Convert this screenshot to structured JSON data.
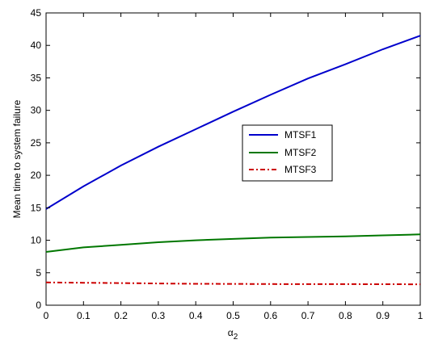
{
  "chart_data": {
    "type": "line",
    "xlabel_base": "α",
    "xlabel_sub": "2",
    "ylabel": "Mean time to system failure",
    "xlim": [
      0,
      1
    ],
    "ylim": [
      0,
      45
    ],
    "xticks": [
      0,
      0.1,
      0.2,
      0.3,
      0.4,
      0.5,
      0.6,
      0.7,
      0.8,
      0.9,
      1
    ],
    "xtick_labels": [
      "0",
      "0.1",
      "0.2",
      "0.3",
      "0.4",
      "0.5",
      "0.6",
      "0.7",
      "0.8",
      "0.9",
      "1"
    ],
    "yticks": [
      0,
      5,
      10,
      15,
      20,
      25,
      30,
      35,
      40,
      45
    ],
    "ytick_labels": [
      "0",
      "5",
      "10",
      "15",
      "20",
      "25",
      "30",
      "35",
      "40",
      "45"
    ],
    "grid": false,
    "legend_position": "center-right",
    "x": [
      0,
      0.1,
      0.2,
      0.3,
      0.4,
      0.5,
      0.6,
      0.7,
      0.8,
      0.9,
      1
    ],
    "series": [
      {
        "name": "MTSF1",
        "color": "#0000cc",
        "style": "solid",
        "values": [
          14.8,
          18.3,
          21.5,
          24.4,
          27.1,
          29.8,
          32.4,
          34.9,
          37.1,
          39.4,
          41.5
        ]
      },
      {
        "name": "MTSF2",
        "color": "#007700",
        "style": "solid",
        "values": [
          8.2,
          8.9,
          9.3,
          9.7,
          10.0,
          10.2,
          10.4,
          10.5,
          10.6,
          10.75,
          10.9
        ]
      },
      {
        "name": "MTSF3",
        "color": "#cc0000",
        "style": "dashdot",
        "values": [
          3.5,
          3.45,
          3.4,
          3.35,
          3.3,
          3.28,
          3.26,
          3.25,
          3.24,
          3.23,
          3.22
        ]
      }
    ]
  }
}
